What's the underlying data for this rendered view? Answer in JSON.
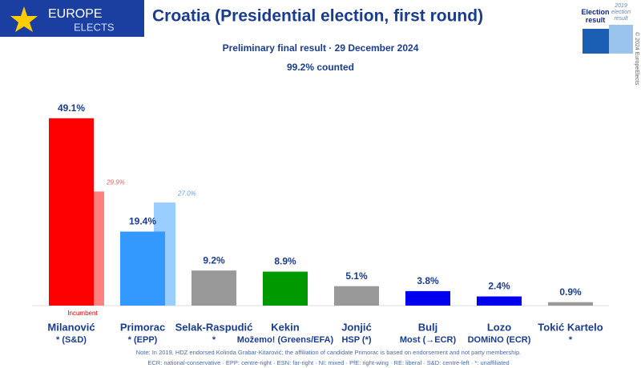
{
  "logo": [
    "EUROPE",
    "ELECTS"
  ],
  "copyright": "© 2024 EuropeElects",
  "chart_data": {
    "type": "bar",
    "title": "Croatia (Presidential election, first round)",
    "subtitle": "Preliminary final result · 29 December 2024",
    "counted": "99.2% counted",
    "annotation": "Incumbent",
    "categories": [
      "Milanović",
      "Primorac",
      "Selak-Raspudić",
      "Kekin",
      "Jonjić",
      "Bulj",
      "Lozo",
      "Tokić Kartelo"
    ],
    "parties": [
      "* (S&D)",
      "* (EPP)",
      "*",
      "Možemo! (Greens/EFA)",
      "HSP (*)",
      "Most (→ECR)",
      "DOMiNO (ECR)",
      "*"
    ],
    "series": [
      {
        "name": "Election result",
        "colors": [
          "#ff0000",
          "#3399ff",
          "#999999",
          "#009900",
          "#999999",
          "#0000ee",
          "#0000ee",
          "#999999"
        ],
        "values": [
          49.1,
          19.4,
          9.2,
          8.9,
          5.1,
          3.8,
          2.4,
          0.9
        ],
        "value_labels": [
          "49.1%",
          "19.4%",
          "9.2%",
          "8.9%",
          "5.1%",
          "3.8%",
          "2.4%",
          "0.9%"
        ]
      },
      {
        "name": "2019 election result",
        "colors": [
          "#ff8080",
          "#99ccff",
          null,
          null,
          null,
          null,
          null,
          null
        ],
        "values": [
          29.9,
          27.0,
          null,
          null,
          null,
          null,
          null,
          null
        ],
        "value_labels": [
          "29.9%",
          "27.0%",
          null,
          null,
          null,
          null,
          null,
          null
        ]
      }
    ],
    "notes": [
      "Note: In 2019, HDZ endorsed Kolinda Grabar-Kitarović; the affiliation of candidate Primorac is based on endorsement and not party membership.",
      "ECR: national-conservative · EPP: centre-right · ESN: far-right · NI: mixed · PfE: right-wing · RE: liberal · S&D: centre-left · *: unaffiliated"
    ]
  }
}
